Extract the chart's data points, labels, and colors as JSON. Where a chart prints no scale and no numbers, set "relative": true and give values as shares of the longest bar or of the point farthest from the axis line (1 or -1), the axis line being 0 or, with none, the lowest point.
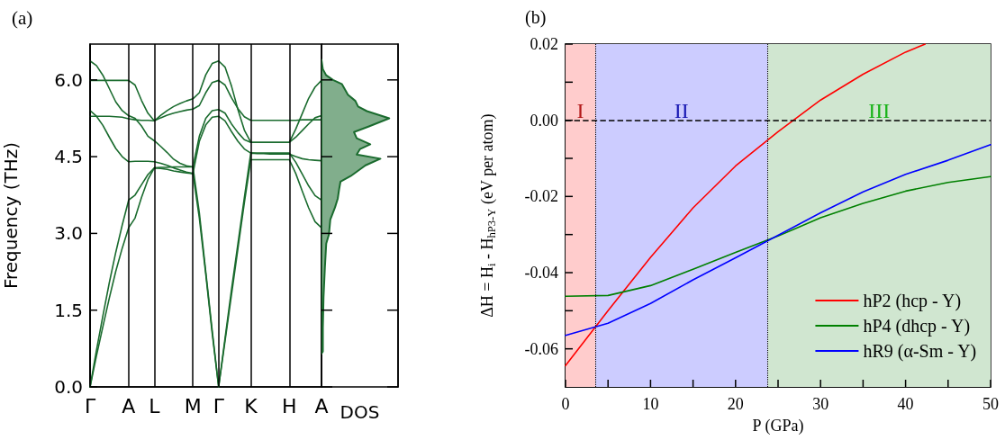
{
  "chart_data": [
    {
      "type": "line",
      "title": "(a)",
      "ylabel": "Frequency (THz)",
      "marker": "none",
      "grid": "x",
      "categories": [
        "Γ",
        null,
        null,
        null,
        null,
        null,
        "A",
        null,
        null,
        null,
        "L",
        null,
        null,
        null,
        null,
        null,
        "M",
        null,
        null,
        null,
        "Γ",
        null,
        null,
        null,
        null,
        "K",
        null,
        null,
        null,
        null,
        null,
        "H",
        null,
        null,
        null,
        null,
        "A"
      ],
      "ylim": [
        0,
        6.7
      ],
      "yticks": [
        {
          "value": 0,
          "label": "0.0"
        },
        1.5,
        {
          "value": 3,
          "label": "3.0"
        },
        4.5,
        {
          "value": 6,
          "label": "6.0"
        }
      ],
      "series": [
        {
          "color": "#1a6b2e",
          "values": [
            6.37,
            6.28,
            6.09,
            5.83,
            5.57,
            5.4,
            5.3,
            5.25,
            5.1,
            4.9,
            4.81,
            4.7,
            4.58,
            4.45,
            4.37,
            4.32,
            4.3,
            4.9,
            5.25,
            5.4,
            5.42,
            5.35,
            5.14,
            4.97,
            4.83,
            4.78,
            4.78,
            4.78,
            4.78,
            4.78,
            4.78,
            4.78,
            4.88,
            5.01,
            5.14,
            5.26,
            5.3
          ]
        },
        {
          "color": "#1a6b2e",
          "values": [
            5.99,
            5.99,
            5.99,
            5.99,
            5.99,
            5.99,
            5.99,
            5.9,
            5.6,
            5.35,
            5.2,
            5.31,
            5.4,
            5.48,
            5.54,
            5.59,
            5.63,
            5.75,
            6.1,
            6.32,
            6.37,
            6.25,
            5.88,
            5.42,
            5.02,
            4.78,
            4.78,
            4.78,
            4.78,
            4.78,
            4.78,
            4.78,
            5.04,
            5.34,
            5.64,
            5.86,
            5.99
          ]
        },
        {
          "color": "#1a6b2e",
          "values": [
            5.4,
            5.29,
            5.11,
            4.88,
            4.66,
            4.5,
            4.4,
            4.41,
            4.41,
            4.41,
            4.4,
            4.37,
            4.33,
            4.28,
            4.24,
            4.2,
            4.17,
            4.8,
            5.12,
            5.27,
            5.29,
            5.2,
            4.99,
            4.8,
            4.65,
            4.57,
            4.57,
            4.57,
            4.57,
            4.57,
            4.57,
            4.57,
            4.39,
            4.16,
            3.93,
            3.74,
            3.65
          ]
        },
        {
          "color": "#1a6b2e",
          "values": [
            5.29,
            5.29,
            5.29,
            5.29,
            5.28,
            5.27,
            5.24,
            5.22,
            5.21,
            5.21,
            5.2,
            5.26,
            5.31,
            5.35,
            5.38,
            5.41,
            5.43,
            5.5,
            5.75,
            5.95,
            5.99,
            5.9,
            5.65,
            5.44,
            5.28,
            5.21,
            5.21,
            5.21,
            5.21,
            5.21,
            5.21,
            5.21,
            5.21,
            5.22,
            5.22,
            5.22,
            5.22
          ]
        },
        {
          "color": "#1a6b2e",
          "values": [
            0,
            0.72,
            1.39,
            2.04,
            2.63,
            3.16,
            3.65,
            3.75,
            3.95,
            4.15,
            4.28,
            4.29,
            4.29,
            4.3,
            4.3,
            4.3,
            4.3,
            3.4,
            2.25,
            1.1,
            0,
            0.95,
            1.9,
            2.8,
            3.7,
            4.57,
            4.56,
            4.56,
            4.55,
            4.55,
            4.55,
            4.55,
            4.5,
            4.46,
            4.44,
            4.43,
            4.42
          ]
        },
        {
          "color": "#1a6b2e",
          "values": [
            0,
            0.61,
            1.18,
            1.74,
            2.26,
            2.71,
            3.11,
            3.3,
            3.7,
            4.05,
            4.28,
            4.27,
            4.25,
            4.22,
            4.2,
            4.18,
            4.17,
            3.3,
            2.2,
            1.05,
            0,
            0.9,
            1.8,
            2.7,
            3.6,
            4.44,
            4.44,
            4.44,
            4.44,
            4.44,
            4.44,
            4.44,
            4.17,
            3.83,
            3.5,
            3.23,
            3.11
          ]
        }
      ]
    },
    {
      "type": "area",
      "orientation": "horizontal",
      "relative": true,
      "xlabel": "DOS",
      "tick_labels": false,
      "x": [
        0.65,
        0.69,
        1.16,
        1.75,
        2.33,
        2.8,
        2.98,
        3.27,
        3.51,
        3.68,
        3.86,
        4.01,
        4.12,
        4.33,
        4.46,
        4.54,
        4.65,
        4.74,
        4.86,
        4.98,
        5.09,
        5.25,
        5.39,
        5.48,
        5.59,
        5.71,
        5.92,
        6.0,
        6.09,
        6.21,
        6.39
      ],
      "values": [
        0,
        0.02,
        0.02,
        0.03,
        0.05,
        0.07,
        0.11,
        0.13,
        0.2,
        0.24,
        0.26,
        0.28,
        0.43,
        0.65,
        0.87,
        0.52,
        0.57,
        0.72,
        0.52,
        0.48,
        0.7,
        1.0,
        0.67,
        0.54,
        0.5,
        0.39,
        0.3,
        0.17,
        0.07,
        0.02,
        0
      ],
      "color": "#1a6b2e",
      "ylim": [
        0,
        6.7
      ],
      "yticks": [
        0,
        1.5,
        3,
        4.5,
        6
      ]
    },
    {
      "type": "line",
      "title": "(b)",
      "xlabel": "P (GPa)",
      "ylabel": "ΔH = H$_{i}$ - H$_{hP3-Y}$ (eV per atom)",
      "marker": "none",
      "legend": "bottom right",
      "xlim": [
        0,
        50
      ],
      "xticks": [
        0,
        {
          "value": 5,
          "label": null
        },
        10,
        {
          "value": 15,
          "label": null
        },
        20,
        {
          "value": 25,
          "label": null
        },
        30,
        {
          "value": 35,
          "label": null
        },
        40,
        {
          "value": 45,
          "label": null
        },
        50
      ],
      "ylim": [
        -0.07,
        0.02
      ],
      "yticks": [
        -0.06,
        {
          "value": -0.05,
          "label": null
        },
        -0.04,
        {
          "value": -0.03,
          "label": null
        },
        -0.02,
        {
          "value": -0.01,
          "label": null
        },
        {
          "value": 0,
          "label": "0.00"
        },
        {
          "value": 0.01,
          "label": null
        },
        0.02
      ],
      "series": [
        {
          "name": "hP2 (hcp - Y)",
          "color": "#ff0000",
          "x": [
            0,
            5,
            10,
            15,
            20,
            25,
            30,
            35,
            40,
            42.3
          ],
          "values": [
            -0.0644,
            -0.05,
            -0.036,
            -0.023,
            -0.012,
            -0.003,
            0.0053,
            0.0121,
            0.0179,
            0.02
          ]
        },
        {
          "name": "hP4 (dhcp - Y)",
          "color": "#008000",
          "x": [
            0,
            5,
            10,
            15,
            20,
            25,
            30,
            35,
            40,
            45,
            50
          ],
          "values": [
            -0.0462,
            -0.046,
            -0.0434,
            -0.0391,
            -0.0347,
            -0.0304,
            -0.0256,
            -0.0218,
            -0.0186,
            -0.0163,
            -0.0148
          ]
        },
        {
          "name": "hR9 (α-Sm - Y)",
          "color": "#0000ff",
          "x": [
            0,
            5,
            10,
            15,
            20,
            25,
            30,
            35,
            40,
            45,
            50
          ],
          "values": [
            -0.0565,
            -0.0533,
            -0.0481,
            -0.0419,
            -0.0361,
            -0.0302,
            -0.0243,
            -0.0188,
            -0.0142,
            -0.0105,
            -0.0064
          ]
        }
      ],
      "ref_lines": [
        {
          "axis": "y",
          "value": 0,
          "line_style": "dashed",
          "color": "#000000"
        },
        {
          "axis": "x",
          "value": 3.5,
          "line_style": "dotted",
          "color": "#000000"
        },
        {
          "axis": "x",
          "value": 23.8,
          "line_style": "dotted",
          "color": "#000000"
        }
      ],
      "bands": [
        {
          "axis": "x",
          "from": 0,
          "to": 3.5,
          "label": "I",
          "color": "#ffcccc"
        },
        {
          "axis": "x",
          "from": 3.5,
          "to": 23.8,
          "label": "II",
          "color": "#ccccff"
        },
        {
          "axis": "x",
          "from": 23.8,
          "to": 50,
          "label": "III",
          "color": "#d0e6d0"
        }
      ]
    }
  ]
}
